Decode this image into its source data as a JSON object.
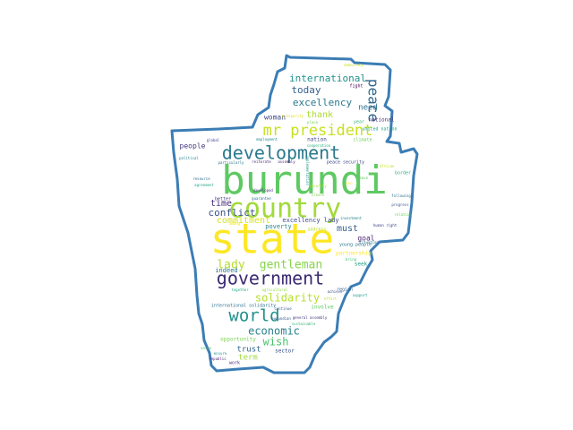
{
  "theme": {
    "background": "#ffffff",
    "outline": "#3b7db5"
  },
  "words": [
    {
      "text": "burundi",
      "color": "#5ec962"
    },
    {
      "text": "state",
      "color": "#fde725"
    },
    {
      "text": "country",
      "color": "#a0da39"
    },
    {
      "text": "government",
      "color": "#3b2a73"
    },
    {
      "text": "development",
      "color": "#2a788e"
    },
    {
      "text": "mr president",
      "color": "#c8e020"
    },
    {
      "text": "world",
      "color": "#21918c"
    },
    {
      "text": "peace",
      "color": "#31688e"
    },
    {
      "text": "lady",
      "color": "#b5de2b"
    },
    {
      "text": "gentleman",
      "color": "#86d549"
    },
    {
      "text": "solidarity",
      "color": "#b5de2b"
    },
    {
      "text": "economic",
      "color": "#26828e"
    },
    {
      "text": "wish",
      "color": "#4ac16d"
    },
    {
      "text": "international",
      "color": "#21918c"
    },
    {
      "text": "today",
      "color": "#355f8d"
    },
    {
      "text": "excellency",
      "color": "#2a788e"
    },
    {
      "text": "thank",
      "color": "#addc30"
    },
    {
      "text": "conflict",
      "color": "#3b528b"
    },
    {
      "text": "time",
      "color": "#472d7b"
    },
    {
      "text": "commitment",
      "color": "#d8e219"
    },
    {
      "text": "must",
      "color": "#355f8d"
    },
    {
      "text": "people",
      "color": "#443983"
    },
    {
      "text": "woman",
      "color": "#3e4989"
    },
    {
      "text": "need",
      "color": "#2c728e"
    },
    {
      "text": "goal",
      "color": "#482173"
    },
    {
      "text": "trust",
      "color": "#33638d"
    },
    {
      "text": "term",
      "color": "#a0da39"
    },
    {
      "text": "excellency lady",
      "color": "#3e4989"
    },
    {
      "text": "poverty",
      "color": "#26828e"
    },
    {
      "text": "indeed",
      "color": "#2c728e"
    },
    {
      "text": "national",
      "color": "#46337e"
    },
    {
      "text": "nation",
      "color": "#404688"
    },
    {
      "text": "peace security",
      "color": "#3f4788"
    },
    {
      "text": "united nation",
      "color": "#1f9e89"
    },
    {
      "text": "climate",
      "color": "#6ccd5a"
    },
    {
      "text": "seek",
      "color": "#1fa187"
    },
    {
      "text": "better",
      "color": "#46327e"
    },
    {
      "text": "sector",
      "color": "#3b528b"
    },
    {
      "text": "young people",
      "color": "#2a788e"
    },
    {
      "text": "opportunity",
      "color": "#7ad151"
    },
    {
      "text": "involve",
      "color": "#5ec962"
    },
    {
      "text": "partnership",
      "color": "#fde725"
    },
    {
      "text": "international solidarity",
      "color": "#2d708e"
    },
    {
      "text": "address",
      "color": "#b8de29"
    },
    {
      "text": "work",
      "color": "#472c7a"
    },
    {
      "text": "together",
      "color": "#22a884"
    },
    {
      "text": "region",
      "color": "#355f8d"
    },
    {
      "text": "fight",
      "color": "#440154"
    },
    {
      "text": "year",
      "color": "#35b779"
    },
    {
      "text": "human right",
      "color": "#414487"
    },
    {
      "text": "border",
      "color": "#29af7f"
    },
    {
      "text": "progress",
      "color": "#3b528b"
    },
    {
      "text": "relation",
      "color": "#6ece58"
    },
    {
      "text": "situation",
      "color": "#2e6f8e"
    },
    {
      "text": "support",
      "color": "#1f988b"
    },
    {
      "text": "achieve",
      "color": "#3b528b"
    },
    {
      "text": "effort",
      "color": "#bddf26"
    },
    {
      "text": "resource",
      "color": "#31688e"
    },
    {
      "text": "political",
      "color": "#277f8e"
    },
    {
      "text": "agreement",
      "color": "#20a486"
    },
    {
      "text": "particularly",
      "color": "#2c728e"
    },
    {
      "text": "reiterate",
      "color": "#482878"
    },
    {
      "text": "assembly",
      "color": "#481b6d"
    },
    {
      "text": "global",
      "color": "#404588"
    },
    {
      "text": "guarantee",
      "color": "#2e6e8e"
    },
    {
      "text": "developed",
      "color": "#463480"
    },
    {
      "text": "ensure",
      "color": "#20928c"
    },
    {
      "text": "republic",
      "color": "#482475"
    },
    {
      "text": "general assembly",
      "color": "#453781"
    },
    {
      "text": "burundian",
      "color": "#3a548c"
    },
    {
      "text": "continue",
      "color": "#365d8d"
    },
    {
      "text": "following",
      "color": "#2a768e"
    },
    {
      "text": "investment",
      "color": "#25858e"
    },
    {
      "text": "employment",
      "color": "#23898e"
    },
    {
      "text": "implementation",
      "color": "#1f958b"
    },
    {
      "text": "cooperation",
      "color": "#28ae80"
    },
    {
      "text": "sustainable",
      "color": "#32b67a"
    },
    {
      "text": "bring",
      "color": "#3dbc74"
    },
    {
      "text": "value",
      "color": "#56c667"
    },
    {
      "text": "leave",
      "color": "#62cb5f"
    },
    {
      "text": "place",
      "color": "#75d054"
    },
    {
      "text": "create",
      "color": "#83d34b"
    },
    {
      "text": "agricultural",
      "color": "#93d741"
    },
    {
      "text": "security",
      "color": "#addc30"
    },
    {
      "text": "african",
      "color": "#c2df23"
    },
    {
      "text": "democracy",
      "color": "#cde11d"
    },
    {
      "text": "prosperity",
      "color": "#dfe318"
    },
    {
      "text": "among",
      "color": "#f1e51d"
    },
    {
      "text": "one",
      "color": "#fde725"
    }
  ]
}
